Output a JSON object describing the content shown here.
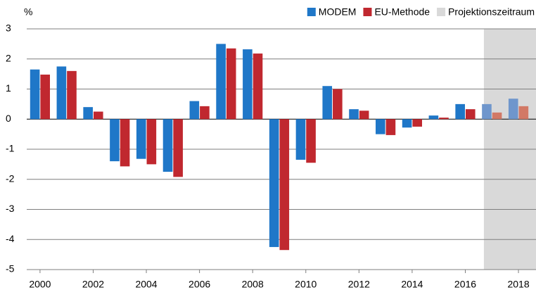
{
  "chart_data": {
    "type": "bar",
    "ylabel": "%",
    "x": [
      2000,
      2001,
      2002,
      2003,
      2004,
      2005,
      2006,
      2007,
      2008,
      2009,
      2010,
      2011,
      2012,
      2013,
      2014,
      2015,
      2016,
      2017,
      2018
    ],
    "xlim": [
      1999.5,
      2018.66
    ],
    "xticks": [
      2000,
      2002,
      2004,
      2006,
      2008,
      2010,
      2012,
      2014,
      2016,
      2018
    ],
    "ylim": [
      -5,
      3
    ],
    "yticks": [
      -5,
      -4,
      -3,
      -2,
      -1,
      0,
      1,
      2,
      3
    ],
    "grid": true,
    "legend": "top-right",
    "series": [
      {
        "name": "MODEM",
        "color": "#1f77c8",
        "projection_color": "#6f96cc",
        "values": [
          1.65,
          1.75,
          0.4,
          -1.4,
          -1.32,
          -1.75,
          0.6,
          2.5,
          2.32,
          -4.25,
          -1.35,
          1.1,
          0.33,
          -0.5,
          -0.28,
          0.12,
          0.5,
          0.5,
          0.68
        ]
      },
      {
        "name": "EU-Methode",
        "color": "#c0282f",
        "projection_color": "#d27966",
        "values": [
          1.48,
          1.6,
          0.25,
          -1.57,
          -1.5,
          -1.92,
          0.43,
          2.35,
          2.18,
          -4.35,
          -1.45,
          1.0,
          0.28,
          -0.53,
          -0.25,
          0.05,
          0.33,
          0.22,
          0.43
        ]
      }
    ],
    "projection": {
      "name": "Projektionszeitraum",
      "color": "#d9d9d9",
      "xlim": [
        2016.7,
        2018.66
      ]
    }
  }
}
